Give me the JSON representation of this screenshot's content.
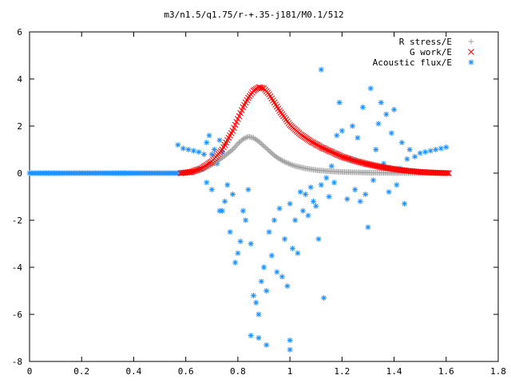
{
  "chart_data": {
    "type": "scatter",
    "title": "m3/n1.5/q1.75/r-+.35-j181/M0.1/512",
    "xlabel": "",
    "ylabel": "",
    "xlim": [
      0,
      1.8
    ],
    "ylim": [
      -8,
      6
    ],
    "x_ticks": [
      "0",
      "0.2",
      "0.4",
      "0.6",
      "0.8",
      "1",
      "1.2",
      "1.4",
      "1.6",
      "1.8"
    ],
    "y_ticks": [
      "6",
      "4",
      "2",
      "0",
      "-2",
      "-4",
      "-6",
      "-8"
    ],
    "grid": false,
    "legend_position": "top-right",
    "series": [
      {
        "name": "R stress/E",
        "marker": "+",
        "color": "#a0a0a0",
        "points": [
          [
            0.58,
            0.0
          ],
          [
            0.62,
            0.05
          ],
          [
            0.66,
            0.15
          ],
          [
            0.7,
            0.35
          ],
          [
            0.74,
            0.65
          ],
          [
            0.78,
            1.0
          ],
          [
            0.8,
            1.25
          ],
          [
            0.82,
            1.45
          ],
          [
            0.84,
            1.55
          ],
          [
            0.86,
            1.5
          ],
          [
            0.88,
            1.35
          ],
          [
            0.9,
            1.15
          ],
          [
            0.92,
            0.95
          ],
          [
            0.94,
            0.75
          ],
          [
            0.96,
            0.6
          ],
          [
            0.98,
            0.48
          ],
          [
            1.0,
            0.38
          ],
          [
            1.02,
            0.3
          ],
          [
            1.06,
            0.2
          ],
          [
            1.1,
            0.13
          ],
          [
            1.15,
            0.08
          ],
          [
            1.2,
            0.05
          ],
          [
            1.3,
            0.02
          ],
          [
            1.4,
            0.01
          ],
          [
            1.5,
            0.0
          ],
          [
            1.61,
            0.0
          ]
        ]
      },
      {
        "name": "G work/E",
        "marker": "x",
        "color": "#ff0000",
        "points": [
          [
            0.58,
            0.0
          ],
          [
            0.62,
            0.05
          ],
          [
            0.66,
            0.2
          ],
          [
            0.7,
            0.5
          ],
          [
            0.74,
            1.0
          ],
          [
            0.78,
            1.8
          ],
          [
            0.8,
            2.3
          ],
          [
            0.82,
            2.8
          ],
          [
            0.84,
            3.2
          ],
          [
            0.86,
            3.5
          ],
          [
            0.88,
            3.65
          ],
          [
            0.9,
            3.6
          ],
          [
            0.92,
            3.35
          ],
          [
            0.94,
            3.0
          ],
          [
            0.96,
            2.65
          ],
          [
            0.98,
            2.35
          ],
          [
            1.0,
            2.05
          ],
          [
            1.04,
            1.65
          ],
          [
            1.08,
            1.35
          ],
          [
            1.12,
            1.1
          ],
          [
            1.16,
            0.9
          ],
          [
            1.2,
            0.7
          ],
          [
            1.25,
            0.52
          ],
          [
            1.3,
            0.38
          ],
          [
            1.35,
            0.26
          ],
          [
            1.4,
            0.17
          ],
          [
            1.45,
            0.1
          ],
          [
            1.5,
            0.05
          ],
          [
            1.55,
            0.02
          ],
          [
            1.61,
            0.0
          ]
        ]
      },
      {
        "name": "Acoustic flux/E",
        "marker": "*",
        "color": "#1e90ff",
        "points": [
          [
            0.0,
            0.0
          ],
          [
            0.1,
            0.0
          ],
          [
            0.2,
            0.0
          ],
          [
            0.3,
            0.0
          ],
          [
            0.4,
            0.0
          ],
          [
            0.5,
            0.0
          ],
          [
            0.58,
            0.0
          ],
          [
            0.57,
            1.2
          ],
          [
            0.59,
            1.05
          ],
          [
            0.61,
            1.0
          ],
          [
            0.63,
            0.95
          ],
          [
            0.65,
            0.9
          ],
          [
            0.67,
            0.8
          ],
          [
            0.68,
            1.3
          ],
          [
            0.69,
            1.6
          ],
          [
            0.7,
            0.8
          ],
          [
            0.71,
            1.0
          ],
          [
            0.72,
            0.5
          ],
          [
            0.73,
            1.4
          ],
          [
            0.74,
            0.9
          ],
          [
            0.75,
            1.2
          ],
          [
            0.66,
            0.2
          ],
          [
            0.68,
            -0.4
          ],
          [
            0.7,
            -0.7
          ],
          [
            0.72,
            0.4
          ],
          [
            0.73,
            -1.6
          ],
          [
            0.74,
            -1.6
          ],
          [
            0.75,
            -1.2
          ],
          [
            0.76,
            -0.5
          ],
          [
            0.77,
            -2.5
          ],
          [
            0.78,
            -0.9
          ],
          [
            0.79,
            -3.8
          ],
          [
            0.8,
            -3.4
          ],
          [
            0.81,
            -2.9
          ],
          [
            0.82,
            -1.6
          ],
          [
            0.83,
            -2.0
          ],
          [
            0.84,
            -0.7
          ],
          [
            0.85,
            -3.0
          ],
          [
            0.86,
            -5.2
          ],
          [
            0.87,
            -5.5
          ],
          [
            0.88,
            -6.0
          ],
          [
            0.89,
            -4.6
          ],
          [
            0.9,
            -4.0
          ],
          [
            0.91,
            -5.0
          ],
          [
            0.92,
            -2.5
          ],
          [
            0.93,
            -3.5
          ],
          [
            0.94,
            -2.0
          ],
          [
            0.95,
            -4.2
          ],
          [
            0.96,
            -1.5
          ],
          [
            0.97,
            -4.4
          ],
          [
            0.98,
            -2.8
          ],
          [
            0.99,
            -4.8
          ],
          [
            1.0,
            -1.3
          ],
          [
            1.01,
            -3.2
          ],
          [
            1.02,
            -2.0
          ],
          [
            1.03,
            -3.4
          ],
          [
            1.04,
            -0.8
          ],
          [
            1.05,
            -1.6
          ],
          [
            1.06,
            -0.9
          ],
          [
            1.07,
            -1.8
          ],
          [
            1.08,
            -0.6
          ],
          [
            1.09,
            -1.2
          ],
          [
            0.85,
            -6.9
          ],
          [
            0.91,
            -7.3
          ],
          [
            1.0,
            -7.5
          ],
          [
            1.0,
            -7.1
          ],
          [
            0.88,
            -7.0
          ],
          [
            1.12,
            4.4
          ],
          [
            1.13,
            -5.3
          ],
          [
            1.1,
            -1.4
          ],
          [
            1.11,
            -2.8
          ],
          [
            1.12,
            -0.5
          ],
          [
            1.14,
            -0.2
          ],
          [
            1.15,
            -1.0
          ],
          [
            1.16,
            0.3
          ],
          [
            1.17,
            -0.4
          ],
          [
            1.18,
            1.6
          ],
          [
            1.19,
            3.0
          ],
          [
            1.2,
            1.8
          ],
          [
            1.22,
            -1.1
          ],
          [
            1.23,
            0.6
          ],
          [
            1.24,
            2.0
          ],
          [
            1.25,
            -0.7
          ],
          [
            1.26,
            1.5
          ],
          [
            1.27,
            -1.2
          ],
          [
            1.28,
            2.8
          ],
          [
            1.29,
            -0.9
          ],
          [
            1.3,
            -2.3
          ],
          [
            1.31,
            3.6
          ],
          [
            1.32,
            -0.3
          ],
          [
            1.33,
            1.0
          ],
          [
            1.34,
            2.1
          ],
          [
            1.35,
            3.0
          ],
          [
            1.36,
            0.4
          ],
          [
            1.37,
            2.5
          ],
          [
            1.38,
            -0.8
          ],
          [
            1.39,
            1.7
          ],
          [
            1.4,
            2.7
          ],
          [
            1.41,
            -0.5
          ],
          [
            1.42,
            0.2
          ],
          [
            1.43,
            1.3
          ],
          [
            1.44,
            -1.3
          ],
          [
            1.45,
            0.6
          ],
          [
            1.46,
            1.0
          ],
          [
            1.48,
            0.7
          ],
          [
            1.5,
            0.85
          ],
          [
            1.52,
            0.9
          ],
          [
            1.54,
            0.95
          ],
          [
            1.56,
            1.0
          ],
          [
            1.58,
            1.05
          ],
          [
            1.6,
            1.1
          ]
        ]
      }
    ]
  }
}
